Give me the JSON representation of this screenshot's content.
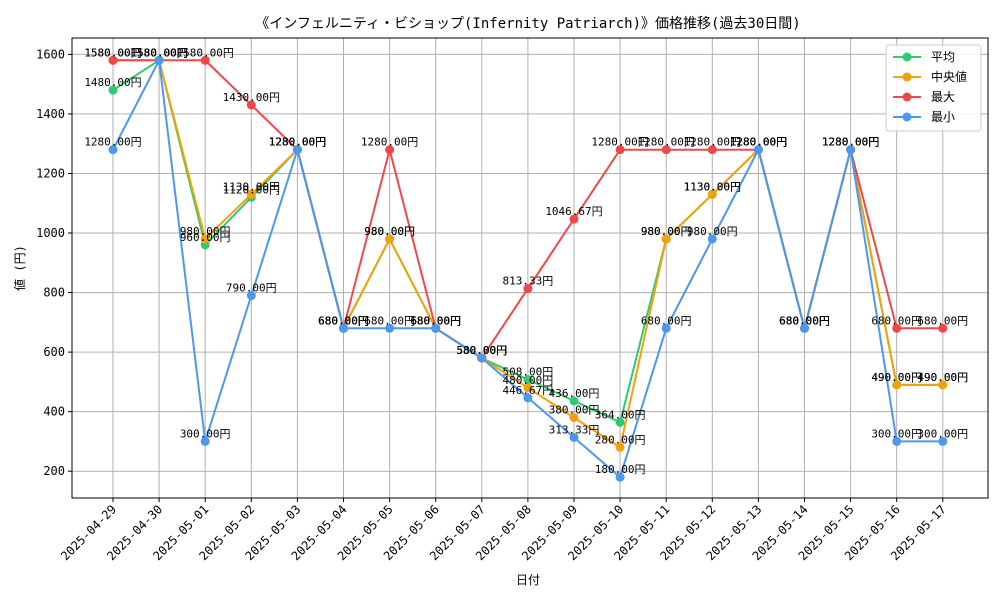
{
  "chart_data": {
    "type": "line",
    "title": "《インフェルニティ・ビショップ(Infernity Patriarch)》価格推移(過去30日間)",
    "xlabel": "日付",
    "ylabel": "値 (円)",
    "ylim": [
      110,
      1655
    ],
    "yticks": [
      200,
      400,
      600,
      800,
      1000,
      1200,
      1400,
      1600
    ],
    "grid": true,
    "legend_position": "top-right",
    "label_suffix": "円",
    "categories": [
      "2025-04-29",
      "2025-04-30",
      "2025-05-01",
      "2025-05-02",
      "2025-05-03",
      "2025-05-04",
      "2025-05-05",
      "2025-05-06",
      "2025-05-07",
      "2025-05-08",
      "2025-05-09",
      "2025-05-10",
      "2025-05-11",
      "2025-05-12",
      "2025-05-13",
      "2025-05-14",
      "2025-05-15",
      "2025-05-16",
      "2025-05-17"
    ],
    "series": [
      {
        "name": "平均",
        "color": "#2ecc71",
        "values": [
          1480,
          1580,
          960,
          1120,
          1280,
          680,
          980,
          680,
          580,
          508.0,
          436,
          364,
          980,
          1130,
          1280,
          680,
          1280,
          490,
          490
        ]
      },
      {
        "name": "中央値",
        "color": "#f1a208",
        "values": [
          1580,
          1580,
          980,
          1130,
          1280,
          680,
          980,
          680,
          580,
          480,
          380,
          280,
          980,
          1130,
          1280,
          680,
          1280,
          490,
          490
        ]
      },
      {
        "name": "最大",
        "color": "#f04848",
        "values": [
          1580,
          1580,
          1580,
          1430,
          1280,
          680,
          1280,
          680,
          580,
          813.33,
          1046.67,
          1280,
          1280,
          1280,
          1280,
          680,
          1280,
          680,
          680
        ]
      },
      {
        "name": "最小",
        "color": "#4a98f0",
        "values": [
          1280,
          1580,
          300,
          790,
          1280,
          680,
          680,
          680,
          580,
          446.67,
          313.33,
          180,
          680,
          980,
          1280,
          680,
          1280,
          300,
          300
        ]
      }
    ]
  }
}
